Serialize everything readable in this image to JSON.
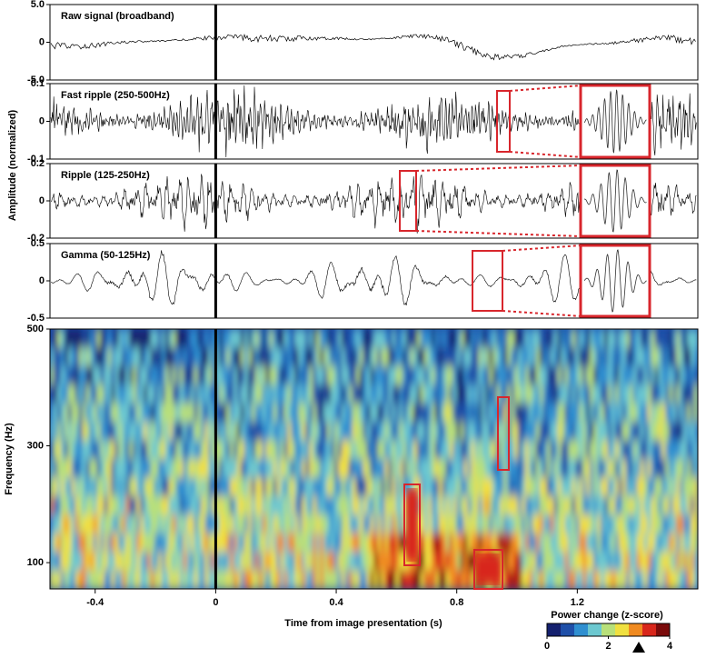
{
  "chart_data": [
    {
      "type": "line",
      "title": "Raw signal (broadband)",
      "ylabel": "Amplitude (normalized)",
      "ylim": [
        -5,
        5
      ],
      "yticks": [
        {
          "value": 5,
          "label": "5.0"
        },
        0,
        {
          "value": -5,
          "label": "-5.0"
        }
      ]
    },
    {
      "type": "line",
      "title": "Fast ripple (250-500Hz)",
      "ylim": [
        -0.1,
        0.1
      ],
      "yticks": [
        0.1,
        0,
        -0.1
      ]
    },
    {
      "type": "line",
      "title": "Ripple (125-250Hz)",
      "ylim": [
        -0.2,
        0.2
      ],
      "yticks": [
        0.2,
        0,
        -0.2
      ]
    },
    {
      "type": "line",
      "title": "Gamma (50-125Hz)",
      "ylim": [
        -0.5,
        0.5
      ],
      "yticks": [
        0.5,
        0,
        -0.5
      ]
    },
    {
      "type": "heatmap",
      "xlabel": "Time from image presentation (s)",
      "ylabel": "Frequency (Hz)",
      "xlim": [
        -0.55,
        1.6
      ],
      "ylim": [
        55,
        500
      ],
      "xticks": [
        -0.4,
        0,
        0.4,
        0.8,
        1.2
      ],
      "yticks": [
        100,
        300,
        500
      ],
      "colorbar": {
        "label": "Power change (z-score)",
        "lim": [
          0,
          4
        ],
        "ticks": [
          0,
          2,
          4
        ],
        "colors": [
          "#14206e",
          "#1f4fa8",
          "#2f8fd0",
          "#6cc8d0",
          "#b8e07a",
          "#f0e040",
          "#f08a20",
          "#d8261a",
          "#7a0a0a"
        ]
      }
    }
  ]
}
